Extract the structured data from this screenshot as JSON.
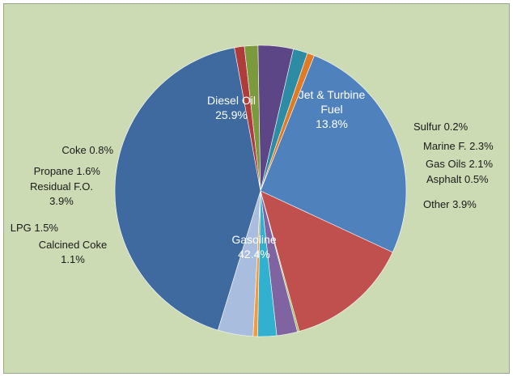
{
  "chart_data": {
    "type": "pie",
    "title": "",
    "slices": [
      {
        "label": "Gasoline",
        "value": 42.4,
        "value_text": "42.4%",
        "color": "#3e6aa0",
        "text_color": "#ffffff"
      },
      {
        "label": "Calcined Coke",
        "value": 1.1,
        "value_text": "1.1%",
        "color": "#ad3c3a",
        "text_color": "#1a1a1a"
      },
      {
        "label": "LPG 1.5%",
        "value": 1.5,
        "value_text": "",
        "color": "#7a9a3c",
        "text_color": "#1a1a1a"
      },
      {
        "label": "Residual F.O.",
        "value": 3.9,
        "value_text": "3.9%",
        "color": "#5c4685",
        "text_color": "#1a1a1a"
      },
      {
        "label": "Propane 1.6%",
        "value": 1.6,
        "value_text": "",
        "color": "#2d8ca3",
        "text_color": "#1a1a1a"
      },
      {
        "label": "Coke 0.8%",
        "value": 0.8,
        "value_text": "",
        "color": "#e07b25",
        "text_color": "#1a1a1a"
      },
      {
        "label": "Diesel Oil",
        "value": 25.9,
        "value_text": "25.9%",
        "color": "#4f81bd",
        "text_color": "#ffffff"
      },
      {
        "label": "Jet & Turbine Fuel",
        "value": 13.8,
        "value_text": "13.8%",
        "color": "#c0504d",
        "text_color": "#ffffff"
      },
      {
        "label": "Sulfur 0.2%",
        "value": 0.2,
        "value_text": "",
        "color": "#9bbb59",
        "text_color": "#1a1a1a"
      },
      {
        "label": "Marine F. 2.3%",
        "value": 2.3,
        "value_text": "",
        "color": "#8064a2",
        "text_color": "#1a1a1a"
      },
      {
        "label": "Gas Oils 2.1%",
        "value": 2.1,
        "value_text": "",
        "color": "#31b0cf",
        "text_color": "#1a1a1a"
      },
      {
        "label": "Asphalt 0.5%",
        "value": 0.5,
        "value_text": "",
        "color": "#f39a3e",
        "text_color": "#1a1a1a"
      },
      {
        "label": "Other 3.9%",
        "value": 3.9,
        "value_text": "",
        "color": "#a9bede",
        "text_color": "#1a1a1a"
      }
    ],
    "legend": "none"
  }
}
